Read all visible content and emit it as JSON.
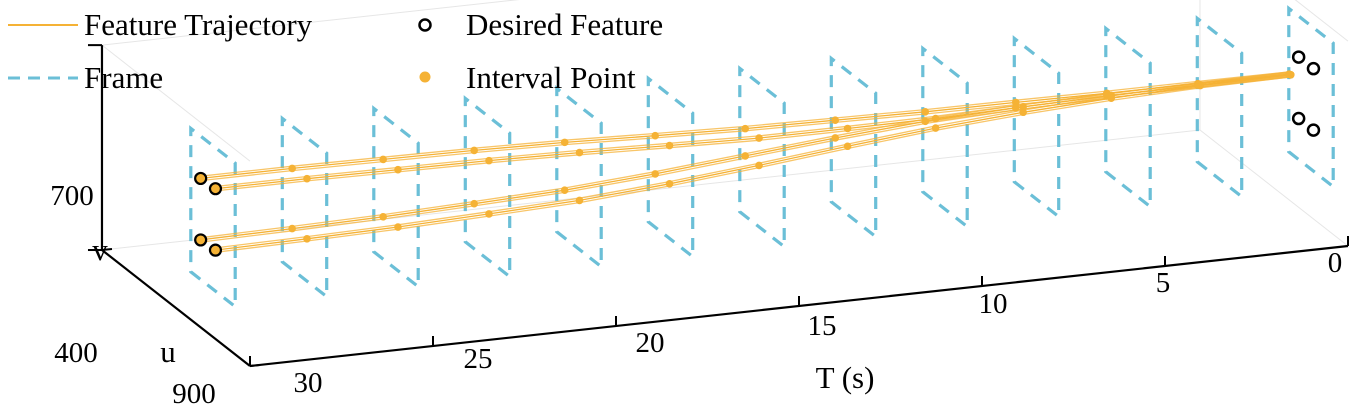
{
  "chart_data": {
    "type": "line",
    "title": "",
    "xlabel": "T (s)",
    "ylabel": "v",
    "zlabel": "u",
    "x_ticks": [
      "30",
      "25",
      "20",
      "15",
      "10",
      "5",
      "0"
    ],
    "y_ticks": [
      "400",
      "700"
    ],
    "z_ticks": [
      "900"
    ],
    "xlim": [
      30,
      0
    ],
    "ylim": [
      400,
      700
    ],
    "grid": false,
    "legend_position": "top-left",
    "legend": [
      {
        "label": "Feature Trajectory",
        "marker": "line",
        "color": "#F5B235"
      },
      {
        "label": "Frame",
        "marker": "dashed-line",
        "color": "#6BBFD7"
      },
      {
        "label": "Desired Feature",
        "marker": "open-circle",
        "color": "#000000"
      },
      {
        "label": "Interval Point",
        "marker": "filled-circle",
        "color": "#F5B235"
      }
    ],
    "frames_at_T": [
      30,
      27.5,
      25,
      22.5,
      20,
      17.5,
      15,
      12.5,
      10,
      7.5,
      5,
      2.5,
      0
    ],
    "interval_points_T": [
      27.5,
      25,
      22.5,
      20,
      17.5,
      15,
      12.5,
      10,
      7.5,
      5,
      2.5,
      0
    ],
    "series": [
      {
        "name": "Feature Trajectory",
        "feature": 1,
        "T": [
          30,
          27.5,
          25,
          22.5,
          20,
          17.5,
          15,
          12.5,
          10,
          7.5,
          5,
          2.5,
          0
        ],
        "u": [
          760,
          760,
          758,
          756,
          752,
          746,
          738,
          726,
          712,
          696,
          682,
          672,
          668
        ],
        "v": [
          620,
          620,
          618,
          616,
          612,
          606,
          600,
          596,
          592,
          590,
          588,
          586,
          585
        ]
      },
      {
        "name": "Feature Trajectory",
        "feature": 2,
        "T": [
          30,
          27.5,
          25,
          22.5,
          20,
          17.5,
          15,
          12.5,
          10,
          7.5,
          5,
          2.5,
          0
        ],
        "u": [
          700,
          700,
          698,
          696,
          692,
          688,
          682,
          676,
          670,
          666,
          664,
          662,
          661
        ],
        "v": [
          618,
          618,
          616,
          614,
          610,
          604,
          598,
          594,
          590,
          588,
          586,
          585,
          584
        ]
      },
      {
        "name": "Feature Trajectory",
        "feature": 3,
        "T": [
          30,
          27.5,
          25,
          22.5,
          20,
          17.5,
          15,
          12.5,
          10,
          7.5,
          5,
          2.5,
          0
        ],
        "u": [
          760,
          760,
          758,
          756,
          752,
          746,
          738,
          726,
          712,
          696,
          682,
          672,
          668
        ],
        "v": [
          530,
          532,
          534,
          538,
          542,
          550,
          560,
          570,
          578,
          582,
          584,
          585,
          585
        ]
      },
      {
        "name": "Feature Trajectory",
        "feature": 4,
        "T": [
          30,
          27.5,
          25,
          22.5,
          20,
          17.5,
          15,
          12.5,
          10,
          7.5,
          5,
          2.5,
          0
        ],
        "u": [
          700,
          700,
          698,
          696,
          692,
          688,
          682,
          676,
          670,
          666,
          664,
          662,
          661
        ],
        "v": [
          528,
          530,
          532,
          536,
          540,
          548,
          558,
          568,
          576,
          580,
          582,
          583,
          584
        ]
      }
    ],
    "desired_features": [
      {
        "T": 0,
        "u": 700,
        "v": 620
      },
      {
        "T": 0,
        "u": 760,
        "v": 620
      },
      {
        "T": 0,
        "u": 700,
        "v": 530
      },
      {
        "T": 0,
        "u": 760,
        "v": 530
      }
    ]
  }
}
